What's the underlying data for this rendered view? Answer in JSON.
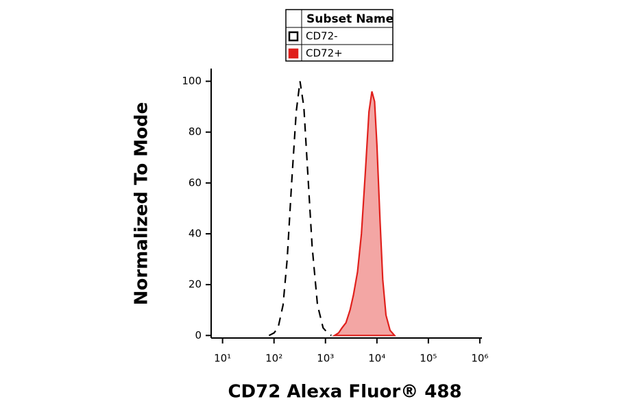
{
  "chart_data": {
    "type": "line",
    "x_label": "CD72 Alexa Fluor® 488",
    "y_label": "Normalized To Mode",
    "legend_title": "Subset Name",
    "xscale": "log",
    "xlim": [
      6,
      1100000
    ],
    "ylim": [
      -1,
      105
    ],
    "xticks": [
      {
        "value": 10,
        "label": "10¹"
      },
      {
        "value": 100,
        "label": "10²"
      },
      {
        "value": 1000,
        "label": "10³"
      },
      {
        "value": 10000,
        "label": "10⁴"
      },
      {
        "value": 100000,
        "label": "10⁵"
      },
      {
        "value": 1000000,
        "label": "10⁶"
      }
    ],
    "yticks": [
      0,
      20,
      40,
      60,
      80,
      100
    ],
    "series": [
      {
        "name": "CD72-",
        "color": "#000000",
        "dashed": true,
        "filled": false,
        "x": [
          80,
          100,
          120,
          150,
          180,
          220,
          270,
          320,
          380,
          450,
          550,
          700,
          900,
          1100,
          1300
        ],
        "values": [
          0,
          1,
          3,
          12,
          30,
          60,
          88,
          100,
          90,
          65,
          35,
          12,
          3,
          1,
          0
        ]
      },
      {
        "name": "CD72+",
        "color": "#e0201c",
        "dashed": false,
        "filled": true,
        "x": [
          1500,
          1800,
          2100,
          2500,
          3000,
          3500,
          4200,
          5000,
          6000,
          7000,
          8000,
          9000,
          10000,
          11500,
          13000,
          15000,
          18000,
          22000
        ],
        "values": [
          0,
          1,
          3,
          5,
          10,
          16,
          25,
          40,
          65,
          88,
          96,
          92,
          75,
          45,
          22,
          8,
          2,
          0
        ]
      }
    ]
  }
}
